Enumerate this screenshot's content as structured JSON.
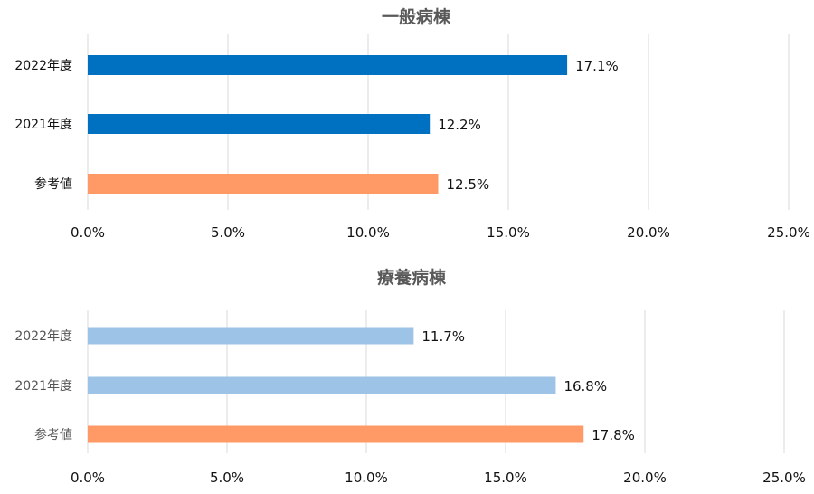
{
  "chart_data": [
    {
      "type": "bar",
      "orientation": "horizontal",
      "title": "一般病棟",
      "categories": [
        "2022年度",
        "2021年度",
        "参考値"
      ],
      "values": [
        17.1,
        12.2,
        12.5
      ],
      "value_labels": [
        "17.1%",
        "12.2%",
        "12.5%"
      ],
      "colors": [
        "#0070C0",
        "#0070C0",
        "#FF9966"
      ],
      "xlim": [
        0,
        25
      ],
      "xticks": [
        "0.0%",
        "5.0%",
        "10.0%",
        "15.0%",
        "20.0%",
        "25.0%"
      ],
      "grid": true,
      "legend": "none"
    },
    {
      "type": "bar",
      "orientation": "horizontal",
      "title": "療養病棟",
      "categories": [
        "2022年度",
        "2021年度",
        "参考値"
      ],
      "values": [
        11.7,
        16.8,
        17.8
      ],
      "value_labels": [
        "11.7%",
        "16.8%",
        "17.8%"
      ],
      "colors": [
        "#9DC3E6",
        "#9DC3E6",
        "#FF9966"
      ],
      "xlim": [
        0,
        25
      ],
      "xticks": [
        "0.0%",
        "5.0%",
        "10.0%",
        "15.0%",
        "20.0%",
        "25.0%"
      ],
      "grid": true,
      "legend": "none"
    }
  ]
}
